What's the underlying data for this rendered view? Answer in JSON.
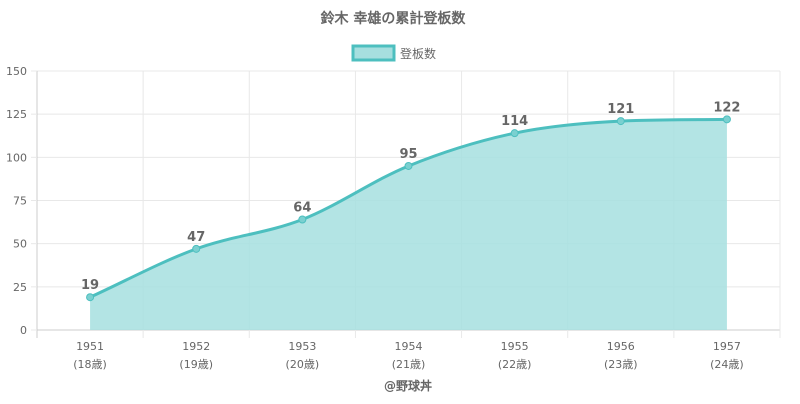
{
  "chart_data": {
    "type": "area",
    "title": "鈴木 幸雄の累計登板数",
    "legend": {
      "label": "登板数",
      "position": "top"
    },
    "x": [
      "1951",
      "1952",
      "1953",
      "1954",
      "1955",
      "1956",
      "1957"
    ],
    "x_sublabels": [
      "(18歳)",
      "(19歳)",
      "(20歳)",
      "(21歳)",
      "(22歳)",
      "(23歳)",
      "(24歳)"
    ],
    "series": [
      {
        "name": "登板数",
        "values": [
          19,
          47,
          64,
          95,
          114,
          121,
          122
        ]
      }
    ],
    "ylim": [
      0,
      150
    ],
    "yticks": [
      0,
      25,
      50,
      75,
      100,
      125,
      150
    ],
    "grid": true,
    "xlabel": "",
    "ylabel": "",
    "colors": {
      "line": "#4dbfbf",
      "fill": "#a6dfdf",
      "point": "#7ad0d0",
      "grid": "#e8e8e8",
      "axis": "#cccccc",
      "text": "#666666"
    }
  },
  "credit": "@野球丼"
}
